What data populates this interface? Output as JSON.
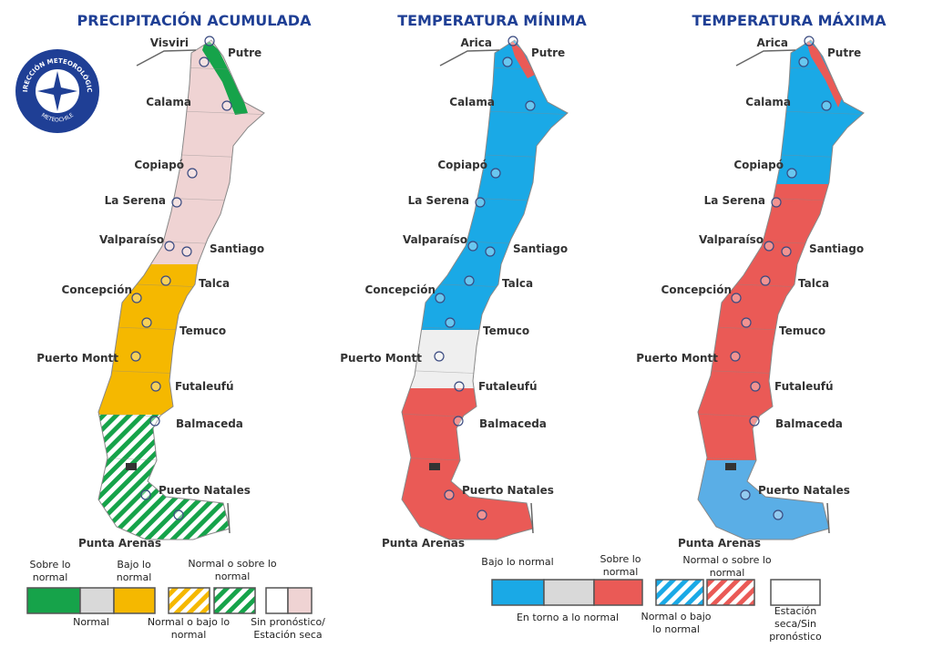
{
  "logo": {
    "top": "DIRECCIÓN METEOROLÓGICA",
    "bottom": "METEOCHILE"
  },
  "maps": [
    {
      "title": "PRECIPITACIÓN ACUMULADA",
      "cities": [
        "Visviri",
        "Putre",
        "Calama",
        "Copiapó",
        "La Serena",
        "Valparaíso",
        "Santiago",
        "Concepción",
        "Talca",
        "Temuco",
        "Puerto Montt",
        "Futaleufú",
        "Balmaceda",
        "Puerto Natales",
        "Punta Arenas"
      ]
    },
    {
      "title": "TEMPERATURA MÍNIMA",
      "cities": [
        "Arica",
        "Putre",
        "Calama",
        "Copiapó",
        "La Serena",
        "Valparaíso",
        "Santiago",
        "Concepción",
        "Talca",
        "Temuco",
        "Puerto Montt",
        "Futaleufú",
        "Balmaceda",
        "Puerto Natales",
        "Punta Arenas"
      ]
    },
    {
      "title": "TEMPERATURA MÁXIMA",
      "cities": [
        "Arica",
        "Putre",
        "Calama",
        "Copiapó",
        "La Serena",
        "Valparaíso",
        "Santiago",
        "Concepción",
        "Talca",
        "Temuco",
        "Puerto Montt",
        "Futaleufú",
        "Balmaceda",
        "Puerto Natales",
        "Punta Arenas"
      ]
    }
  ],
  "legends": [
    {
      "items": [
        [
          "Sobre lo",
          "normal"
        ],
        [
          "Bajo lo",
          "normal"
        ],
        [
          "Normal o sobre lo",
          "normal"
        ],
        [
          "Normal"
        ],
        [
          "Normal o bajo lo",
          "normal"
        ],
        [
          "Sin pronóstico/",
          "Estación seca"
        ]
      ]
    },
    {
      "items": [
        [
          "Bajo lo normal"
        ],
        [
          "Sobre lo",
          "normal"
        ],
        [
          "Normal o sobre lo",
          "normal"
        ],
        [
          "En torno a lo normal"
        ],
        [
          "Normal o bajo",
          "lo normal"
        ],
        [
          "Estación",
          "seca/Sin",
          "pronóstico"
        ]
      ]
    }
  ]
}
